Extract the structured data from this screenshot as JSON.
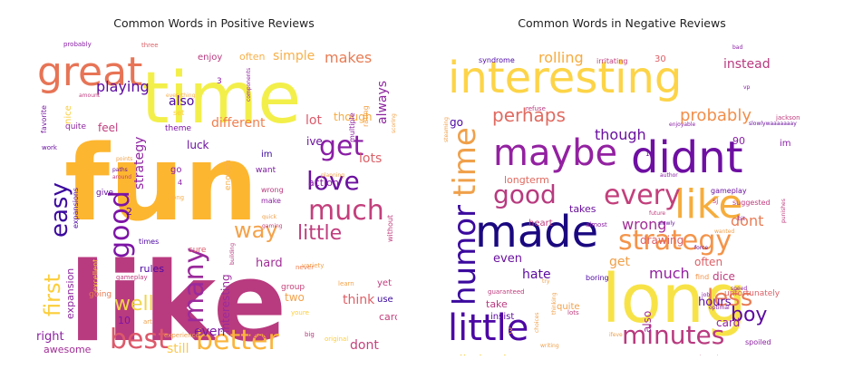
{
  "chart_data": [
    {
      "type": "wordcloud",
      "title": "Common Words in Positive Reviews",
      "words": [
        {
          "text": "like",
          "color": "#b83a7f",
          "size": 120,
          "weight": "bold"
        },
        {
          "text": "fun",
          "color": "#fdb630",
          "size": 115,
          "weight": "bold"
        },
        {
          "text": "time",
          "color": "#f3ef4a",
          "size": 78
        },
        {
          "text": "great",
          "color": "#e77456",
          "size": 44
        },
        {
          "text": "best",
          "color": "#dc5a6a",
          "size": 30
        },
        {
          "text": "better",
          "color": "#fbb43b",
          "size": 30
        },
        {
          "text": "good",
          "color": "#7d14a6",
          "size": 30,
          "rotate": -90
        },
        {
          "text": "love",
          "color": "#6b119f",
          "size": 28
        },
        {
          "text": "much",
          "color": "#c33f7c",
          "size": 30
        },
        {
          "text": "get",
          "color": "#8a1ea6",
          "size": 30
        },
        {
          "text": "many",
          "color": "#9a2a9c",
          "size": 30,
          "rotate": -90
        },
        {
          "text": "well",
          "color": "#f0d54a",
          "size": 22
        },
        {
          "text": "way",
          "color": "#f4a24a",
          "size": 24
        },
        {
          "text": "easy",
          "color": "#3b099e",
          "size": 26,
          "rotate": -90
        },
        {
          "text": "first",
          "color": "#fcce3b",
          "size": 24,
          "rotate": -90
        },
        {
          "text": "little",
          "color": "#c03d7e",
          "size": 22
        },
        {
          "text": "playing",
          "color": "#5c0aa0",
          "size": 16
        },
        {
          "text": "makes",
          "color": "#e87c54",
          "size": 16
        },
        {
          "text": "always",
          "color": "#8e26a0",
          "size": 14,
          "rotate": -90
        },
        {
          "text": "also",
          "color": "#4d07a4",
          "size": 14
        },
        {
          "text": "different",
          "color": "#f07f4e",
          "size": 14
        },
        {
          "text": "simple",
          "color": "#f8b04a",
          "size": 14
        },
        {
          "text": "strategy",
          "color": "#8e22a2",
          "size": 14,
          "rotate": -90
        },
        {
          "text": "think",
          "color": "#dd6067",
          "size": 14
        },
        {
          "text": "even",
          "color": "#7a1aa3",
          "size": 14
        },
        {
          "text": "still",
          "color": "#fdc84a",
          "size": 14
        },
        {
          "text": "right",
          "color": "#8d22a2",
          "size": 13
        },
        {
          "text": "dont",
          "color": "#c4437b",
          "size": 14
        },
        {
          "text": "hard",
          "color": "#a22e97",
          "size": 13
        },
        {
          "text": "lots",
          "color": "#dd6067",
          "size": 14
        },
        {
          "text": "lot",
          "color": "#dc5a6a",
          "size": 14
        },
        {
          "text": "though",
          "color": "#f7ab3e",
          "size": 12
        },
        {
          "text": "ive",
          "color": "#6b119f",
          "size": 12
        },
        {
          "text": "action",
          "color": "#8a1ea6",
          "size": 11
        },
        {
          "text": "interesting",
          "color": "#9a2a9c",
          "size": 12,
          "rotate": -90
        },
        {
          "text": "two",
          "color": "#f4a24a",
          "size": 12
        },
        {
          "text": "luck",
          "color": "#6b119f",
          "size": 12
        },
        {
          "text": "feel",
          "color": "#c03d7e",
          "size": 12
        },
        {
          "text": "enjoy",
          "color": "#b83a7f",
          "size": 10
        },
        {
          "text": "often",
          "color": "#f8b04a",
          "size": 11
        },
        {
          "text": "card",
          "color": "#c33f7c",
          "size": 11
        },
        {
          "text": "expansion",
          "color": "#8e26a0",
          "size": 11,
          "rotate": -90
        },
        {
          "text": "rules",
          "color": "#4d07a4",
          "size": 11
        },
        {
          "text": "awesome",
          "color": "#a22e97",
          "size": 11
        },
        {
          "text": "10",
          "color": "#7d14a6",
          "size": 11
        },
        {
          "text": "use",
          "color": "#3b099e",
          "size": 10
        },
        {
          "text": "yet",
          "color": "#c03d7e",
          "size": 10
        },
        {
          "text": "want",
          "color": "#7a1aa3",
          "size": 9
        },
        {
          "text": "im",
          "color": "#3b099e",
          "size": 10
        },
        {
          "text": "go",
          "color": "#8a1ea6",
          "size": 10
        },
        {
          "text": "give",
          "color": "#5c0aa0",
          "size": 9
        },
        {
          "text": "theme",
          "color": "#7d14a6",
          "size": 9
        },
        {
          "text": "need",
          "color": "#c03d7e",
          "size": 9
        },
        {
          "text": "sure",
          "color": "#dc5a6a",
          "size": 9
        },
        {
          "text": "group",
          "color": "#c4437b",
          "size": 9
        },
        {
          "text": "going",
          "color": "#e87c54",
          "size": 9
        },
        {
          "text": "enough",
          "color": "#f8b04a",
          "size": 9,
          "rotate": -90
        },
        {
          "text": "make",
          "color": "#8e22a2",
          "size": 8
        },
        {
          "text": "wrong",
          "color": "#b83a7f",
          "size": 8
        },
        {
          "text": "times",
          "color": "#4d07a4",
          "size": 8
        },
        {
          "text": "strategies",
          "color": "#8a1ea6",
          "size": 8
        },
        {
          "text": "experience",
          "color": "#f0a04a",
          "size": 7
        },
        {
          "text": "excellent",
          "color": "#fcce3b",
          "size": 8,
          "rotate": -90
        },
        {
          "text": "nice",
          "color": "#fcce3b",
          "size": 10,
          "rotate": -90
        },
        {
          "text": "quite",
          "color": "#8e26a0",
          "size": 9
        },
        {
          "text": "favorite",
          "color": "#7a1aa3",
          "size": 8,
          "rotate": -90
        },
        {
          "text": "work",
          "color": "#6b119f",
          "size": 7
        },
        {
          "text": "expansions",
          "color": "#4d07a4",
          "size": 8,
          "rotate": -90
        },
        {
          "text": "multiple",
          "color": "#8e22a2",
          "size": 8,
          "rotate": -90
        },
        {
          "text": "rating",
          "color": "#f4a24a",
          "size": 8,
          "rotate": -90
        },
        {
          "text": "without",
          "color": "#c03d7e",
          "size": 8,
          "rotate": -90
        },
        {
          "text": "variety",
          "color": "#f4a24a",
          "size": 7
        },
        {
          "text": "original",
          "color": "#fcce3b",
          "size": 7
        },
        {
          "text": "big",
          "color": "#b83a7f",
          "size": 7
        },
        {
          "text": "learn",
          "color": "#f4a24a",
          "size": 7
        },
        {
          "text": "never",
          "color": "#f07f4e",
          "size": 7
        },
        {
          "text": "youre",
          "color": "#fcce3b",
          "size": 7
        },
        {
          "text": "gameplay",
          "color": "#c03d7e",
          "size": 7
        },
        {
          "text": "art",
          "color": "#f0a04a",
          "size": 7
        },
        {
          "text": "probably",
          "color": "#8a1ea6",
          "size": 7
        },
        {
          "text": "three",
          "color": "#dd6067",
          "size": 7
        },
        {
          "text": "amount",
          "color": "#c03d7e",
          "size": 6
        },
        {
          "text": "everything",
          "color": "#f8b04a",
          "size": 6
        },
        {
          "text": "components",
          "color": "#8e22a2",
          "size": 6,
          "rotate": -90
        },
        {
          "text": "points",
          "color": "#f0a04a",
          "size": 6
        },
        {
          "text": "paths",
          "color": "#6b119f",
          "size": 6
        },
        {
          "text": "around",
          "color": "#c03d7e",
          "size": 6
        },
        {
          "text": "quick",
          "color": "#f0a04a",
          "size": 6
        },
        {
          "text": "planning",
          "color": "#f0a04a",
          "size": 6
        },
        {
          "text": "gaming",
          "color": "#c4437b",
          "size": 6
        },
        {
          "text": "building",
          "color": "#b83a7f",
          "size": 6,
          "rotate": -90
        },
        {
          "text": "scoring",
          "color": "#f4a24a",
          "size": 6,
          "rotate": -90
        },
        {
          "text": "4",
          "color": "#8a1ea6",
          "size": 8
        },
        {
          "text": "3",
          "color": "#8a1ea6",
          "size": 9
        },
        {
          "text": "long",
          "color": "#f8b04a",
          "size": 7
        },
        {
          "text": "set",
          "color": "#fcce3b",
          "size": 8
        },
        {
          "text": "2",
          "color": "#5c0aa0",
          "size": 11
        },
        {
          "text": "collection",
          "color": "#f0a04a",
          "size": 6
        }
      ]
    },
    {
      "type": "wordcloud",
      "title": "Common Words in Negative Reviews",
      "words": [
        {
          "text": "long",
          "color": "#f7e347",
          "size": 74
        },
        {
          "text": "interesting",
          "color": "#fdd448",
          "size": 48
        },
        {
          "text": "made",
          "color": "#1a087f",
          "size": 48
        },
        {
          "text": "maybe",
          "color": "#9321a1",
          "size": 40
        },
        {
          "text": "didnt",
          "color": "#6e0fa2",
          "size": 48
        },
        {
          "text": "like",
          "color": "#f6ad3c",
          "size": 44
        },
        {
          "text": "little",
          "color": "#4d07a4",
          "size": 40
        },
        {
          "text": "humor",
          "color": "#3b099e",
          "size": 34,
          "rotate": -90
        },
        {
          "text": "time",
          "color": "#f0a04a",
          "size": 34,
          "rotate": -90
        },
        {
          "text": "every",
          "color": "#c33f7c",
          "size": 30
        },
        {
          "text": "strategy",
          "color": "#f4944a",
          "size": 30
        },
        {
          "text": "minutes",
          "color": "#b83a7f",
          "size": 28
        },
        {
          "text": "good",
          "color": "#b83a7f",
          "size": 28
        },
        {
          "text": "less",
          "color": "#e97c54",
          "size": 26
        },
        {
          "text": "boy",
          "color": "#5c0aa0",
          "size": 22
        },
        {
          "text": "perhaps",
          "color": "#e06a60",
          "size": 20
        },
        {
          "text": "probably",
          "color": "#f28e4a",
          "size": 18
        },
        {
          "text": "though",
          "color": "#6b119f",
          "size": 16
        },
        {
          "text": "instead",
          "color": "#b83a7f",
          "size": 14
        },
        {
          "text": "rolling",
          "color": "#f7ab3e",
          "size": 16
        },
        {
          "text": "wrong",
          "color": "#a22e97",
          "size": 16
        },
        {
          "text": "dont",
          "color": "#e97c54",
          "size": 16
        },
        {
          "text": "much",
          "color": "#9321a1",
          "size": 16
        },
        {
          "text": "hate",
          "color": "#5c0aa0",
          "size": 14
        },
        {
          "text": "also",
          "color": "#a22e97",
          "size": 12,
          "rotate": -90
        },
        {
          "text": "get",
          "color": "#f0a04a",
          "size": 14
        },
        {
          "text": "even",
          "color": "#6b119f",
          "size": 13
        },
        {
          "text": "elimination",
          "color": "#fcce3b",
          "size": 14
        },
        {
          "text": "hours",
          "color": "#5c0aa0",
          "size": 13
        },
        {
          "text": "card",
          "color": "#9321a1",
          "size": 12
        },
        {
          "text": "dice",
          "color": "#c03d7e",
          "size": 12
        },
        {
          "text": "often",
          "color": "#dd6067",
          "size": 12
        },
        {
          "text": "drawing",
          "color": "#dd6067",
          "size": 12
        },
        {
          "text": "longterm",
          "color": "#e06a60",
          "size": 11
        },
        {
          "text": "takes",
          "color": "#6b119f",
          "size": 11
        },
        {
          "text": "heart",
          "color": "#c03d7e",
          "size": 10
        },
        {
          "text": "take",
          "color": "#b83a7f",
          "size": 11
        },
        {
          "text": "insist",
          "color": "#5c0aa0",
          "size": 10
        },
        {
          "text": "quite",
          "color": "#f0a04a",
          "size": 10
        },
        {
          "text": "go",
          "color": "#4d07a4",
          "size": 12
        },
        {
          "text": "90",
          "color": "#8a1ea6",
          "size": 11
        },
        {
          "text": "im",
          "color": "#8a1ea6",
          "size": 10
        },
        {
          "text": "gameplay",
          "color": "#6b119f",
          "size": 8
        },
        {
          "text": "sj",
          "color": "#c03d7e",
          "size": 8
        },
        {
          "text": "suggested",
          "color": "#c03d7e",
          "size": 8
        },
        {
          "text": "unfortunately",
          "color": "#dd6067",
          "size": 9
        },
        {
          "text": "find",
          "color": "#f4944a",
          "size": 8
        },
        {
          "text": "spoiled",
          "color": "#8e22a2",
          "size": 8
        },
        {
          "text": "develops",
          "color": "#c03d7e",
          "size": 8
        },
        {
          "text": "boring",
          "color": "#4d07a4",
          "size": 8
        },
        {
          "text": "lots",
          "color": "#c03d7e",
          "size": 7
        },
        {
          "text": "guaranteed",
          "color": "#c03d7e",
          "size": 7
        },
        {
          "text": "irritating",
          "color": "#c03d7e",
          "size": 8
        },
        {
          "text": "syndrome",
          "color": "#4d07a4",
          "size": 8
        },
        {
          "text": "30",
          "color": "#dd6067",
          "size": 10
        },
        {
          "text": "jackson",
          "color": "#c03d7e",
          "size": 7
        },
        {
          "text": "focus",
          "color": "#f0a04a",
          "size": 7
        },
        {
          "text": "least",
          "color": "#f0a04a",
          "size": 7
        },
        {
          "text": "effort",
          "color": "#f0a04a",
          "size": 7
        },
        {
          "text": "purchased",
          "color": "#c03d7e",
          "size": 7
        },
        {
          "text": "062306",
          "color": "#5c0aa0",
          "size": 7
        },
        {
          "text": "thinking",
          "color": "#f0a04a",
          "size": 6,
          "rotate": -90
        },
        {
          "text": "refuse",
          "color": "#b83a7f",
          "size": 7
        },
        {
          "text": "almost",
          "color": "#8a1ea6",
          "size": 7
        },
        {
          "text": "enjoyable",
          "color": "#8a1ea6",
          "size": 6
        },
        {
          "text": "author",
          "color": "#8a1ea6",
          "size": 6
        },
        {
          "text": "future",
          "color": "#c03d7e",
          "size": 6
        },
        {
          "text": "slowly",
          "color": "#6b119f",
          "size": 6
        },
        {
          "text": "bit",
          "color": "#8a1ea6",
          "size": 6
        },
        {
          "text": "speed",
          "color": "#8a1ea6",
          "size": 6
        },
        {
          "text": "job",
          "color": "#8a1ea6",
          "size": 6
        },
        {
          "text": "optimal",
          "color": "#8a1ea6",
          "size": 6
        },
        {
          "text": "punishes",
          "color": "#c03d7e",
          "size": 6,
          "rotate": -90
        },
        {
          "text": "steaming",
          "color": "#f0a04a",
          "size": 6,
          "rotate": -90
        },
        {
          "text": "writing",
          "color": "#f0a04a",
          "size": 6
        },
        {
          "text": "rules",
          "color": "#f0a04a",
          "size": 6
        },
        {
          "text": "3",
          "color": "#f0a04a",
          "size": 9
        },
        {
          "text": "10",
          "color": "#6b119f",
          "size": 7
        },
        {
          "text": "try",
          "color": "#f0a04a",
          "size": 6
        },
        {
          "text": "bad",
          "color": "#8a1ea6",
          "size": 6
        },
        {
          "text": "vp",
          "color": "#8a1ea6",
          "size": 6
        },
        {
          "text": "slowlywaaaaaaay",
          "color": "#6b119f",
          "size": 6
        },
        {
          "text": "force",
          "color": "#6b119f",
          "size": 6
        },
        {
          "text": "wanted",
          "color": "#f0a04a",
          "size": 6
        },
        {
          "text": "ifeve",
          "color": "#f0a04a",
          "size": 6
        },
        {
          "text": "choices",
          "color": "#f0a04a",
          "size": 6,
          "rotate": -90
        }
      ]
    }
  ]
}
